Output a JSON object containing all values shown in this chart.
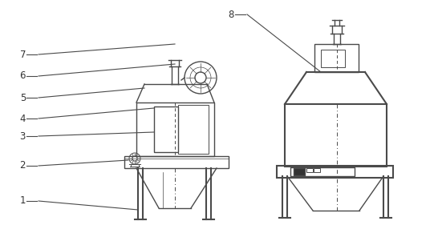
{
  "bg_color": "#ffffff",
  "line_color": "#4a4a4a",
  "label_color": "#333333",
  "label_fontsize": 8.5,
  "figsize": [
    5.46,
    2.86
  ],
  "dpi": 100
}
